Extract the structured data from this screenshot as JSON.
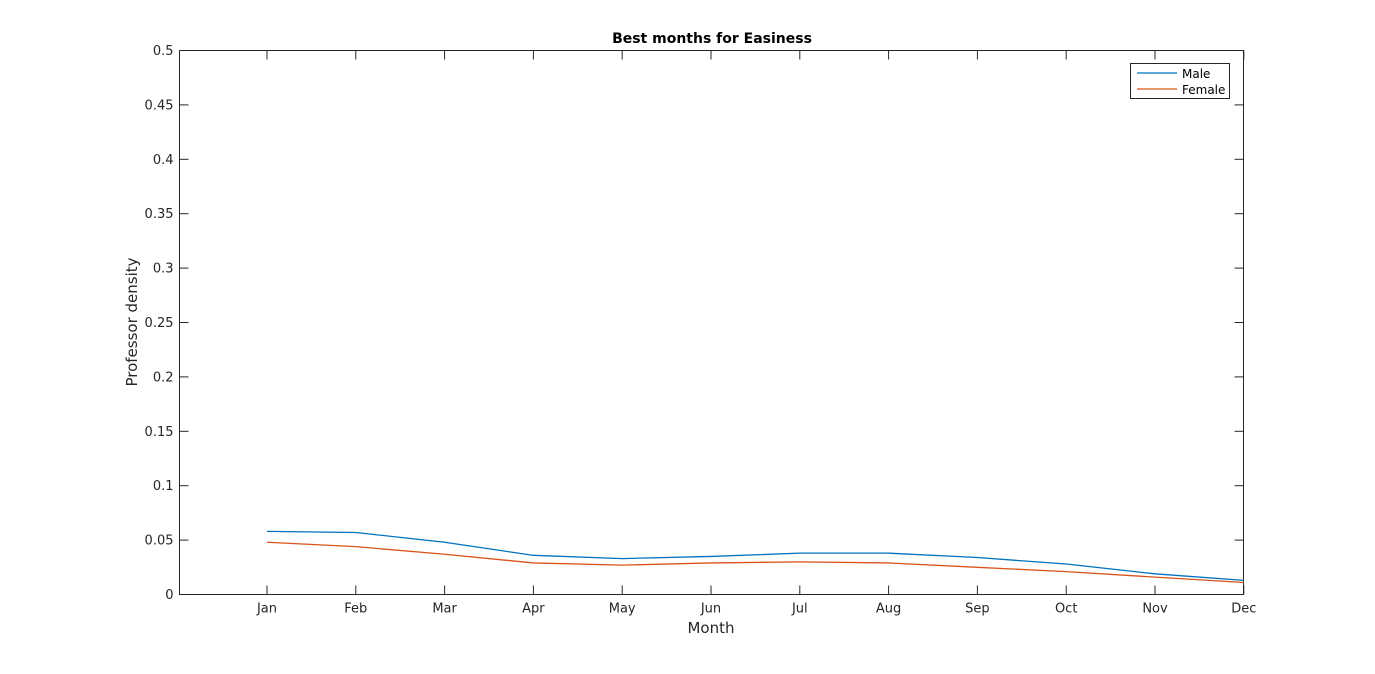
{
  "chart_data": {
    "type": "line",
    "title": "Best months for Easiness",
    "xlabel": "Month",
    "ylabel": "Professor density",
    "categories": [
      "Jan",
      "Feb",
      "Mar",
      "Apr",
      "May",
      "Jun",
      "Jul",
      "Aug",
      "Sep",
      "Oct",
      "Nov",
      "Dec"
    ],
    "ylim": [
      0,
      0.5
    ],
    "yticks": [
      0,
      0.05,
      0.1,
      0.15,
      0.2,
      0.25,
      0.3,
      0.35,
      0.4,
      0.45,
      0.5
    ],
    "ytick_labels": [
      "0",
      "0.05",
      "0.1",
      "0.15",
      "0.2",
      "0.25",
      "0.3",
      "0.35",
      "0.4",
      "0.45",
      "0.5"
    ],
    "grid": false,
    "legend_position": "top-right",
    "series": [
      {
        "name": "Male",
        "color": "#0072BD",
        "values": [
          0.058,
          0.057,
          0.048,
          0.036,
          0.033,
          0.035,
          0.038,
          0.038,
          0.034,
          0.028,
          0.019,
          0.013
        ]
      },
      {
        "name": "Female",
        "color": "#D95319",
        "values": [
          0.048,
          0.044,
          0.037,
          0.029,
          0.027,
          0.029,
          0.03,
          0.029,
          0.025,
          0.021,
          0.016,
          0.011
        ]
      }
    ]
  }
}
